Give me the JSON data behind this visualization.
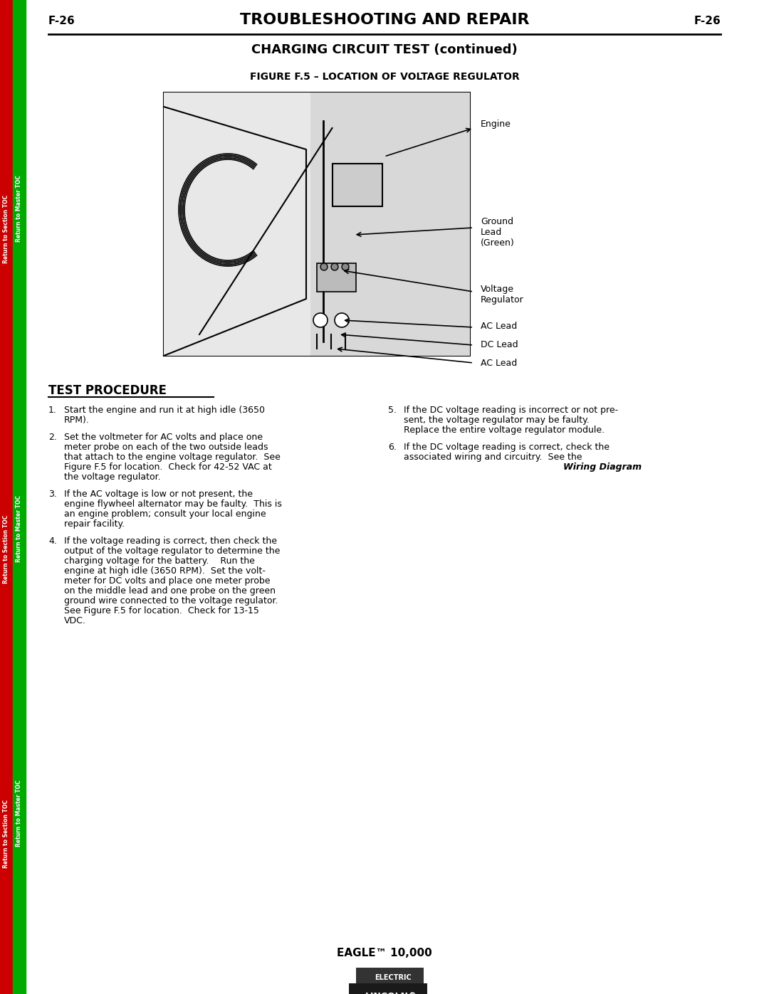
{
  "page_number": "F-26",
  "main_title": "TROUBLESHOOTING AND REPAIR",
  "section_title": "CHARGING CIRCUIT TEST (continued)",
  "figure_title": "FIGURE F.5 – LOCATION OF VOLTAGE REGULATOR",
  "footer_model": "EAGLE™ 10,000",
  "bg_color": "#ffffff",
  "sidebar_red": "#cc0000",
  "sidebar_green": "#00aa00",
  "sidebar_texts": [
    "Return to Section TOC",
    "Return to Master TOC",
    "Return to Section TOC",
    "Return to Master TOC",
    "Return to Section TOC",
    "Return to Master TOC"
  ],
  "test_procedure_title": "TEST PROCEDURE",
  "test_steps": [
    "1. Start the engine and run it at high idle (3650 RPM).",
    "2. Set the voltmeter for AC volts and place one meter probe on each of the two outside leads that attach to the engine voltage regulator.  See Figure F.5 for location.  Check for 42-52 VAC at the voltage regulator.",
    "3. If the AC voltage is low or not present, the engine flywheel alternator may be faulty.  This is an engine problem; consult your local engine repair facility.",
    "4. If the voltage reading is correct, then check the output of the voltage regulator to determine the charging voltage for the battery.   Run the engine at high idle (3650 RPM).  Set the voltmeter for DC volts and place one meter probe on the middle lead and one probe on the green ground wire connected to the voltage regulator.  See Figure F.5 for location.  Check for 13-15 VDC."
  ],
  "test_steps_right": [
    "5. If the DC voltage reading is incorrect or not present, the voltage regulator may be faulty. Replace the entire voltage regulator module.",
    "6. If the DC voltage reading is correct, check the associated wiring and circuitry.  See the Wiring Diagram."
  ],
  "step6_bold": "Wiring Diagram",
  "diagram_labels": [
    "Engine",
    "Ground\nLead\n(Green)",
    "Voltage\nRegulator",
    "AC Lead",
    "DC Lead",
    "AC Lead"
  ]
}
